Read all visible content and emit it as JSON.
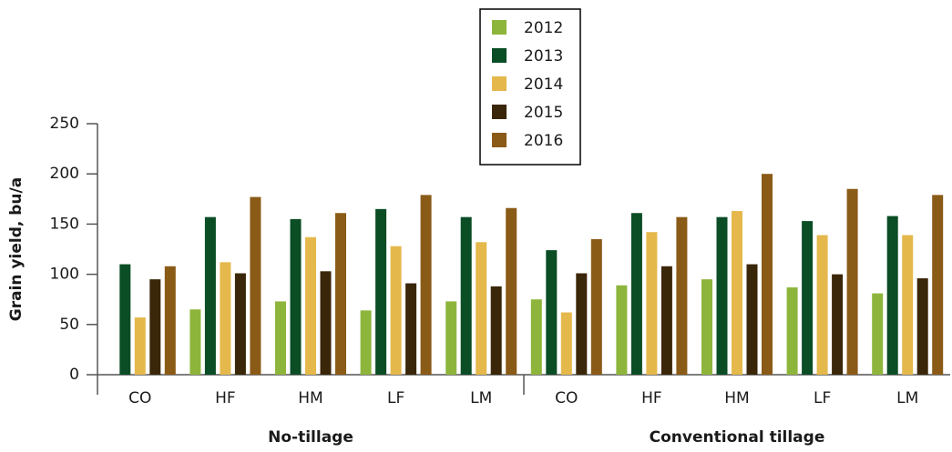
{
  "chart_data": {
    "type": "bar",
    "y_label": "Grain yield, bu/a",
    "groups": [
      {
        "name": "No-tillage",
        "categories": [
          "CO",
          "HF",
          "HM",
          "LF",
          "LM"
        ]
      },
      {
        "name": "Conventional tillage",
        "categories": [
          "CO",
          "HF",
          "HM",
          "LF",
          "LM"
        ]
      }
    ],
    "series": [
      {
        "name": "2012",
        "color": "#8db53c",
        "values": [
          null,
          65,
          73,
          64,
          73,
          75,
          89,
          95,
          87,
          81
        ]
      },
      {
        "name": "2013",
        "color": "#0b4d25",
        "values": [
          110,
          157,
          155,
          165,
          157,
          124,
          161,
          157,
          153,
          158
        ]
      },
      {
        "name": "2014",
        "color": "#e5b84c",
        "values": [
          57,
          112,
          137,
          128,
          132,
          62,
          142,
          163,
          139,
          139
        ]
      },
      {
        "name": "2015",
        "color": "#3a2608",
        "values": [
          95,
          101,
          103,
          91,
          88,
          101,
          108,
          110,
          100,
          96
        ]
      },
      {
        "name": "2016",
        "color": "#8a5a17",
        "values": [
          108,
          177,
          161,
          179,
          166,
          135,
          157,
          200,
          185,
          179
        ]
      }
    ],
    "ylim": [
      0,
      250
    ],
    "yticks": [
      0,
      50,
      100,
      150,
      200,
      250
    ],
    "legend": "top-center"
  }
}
